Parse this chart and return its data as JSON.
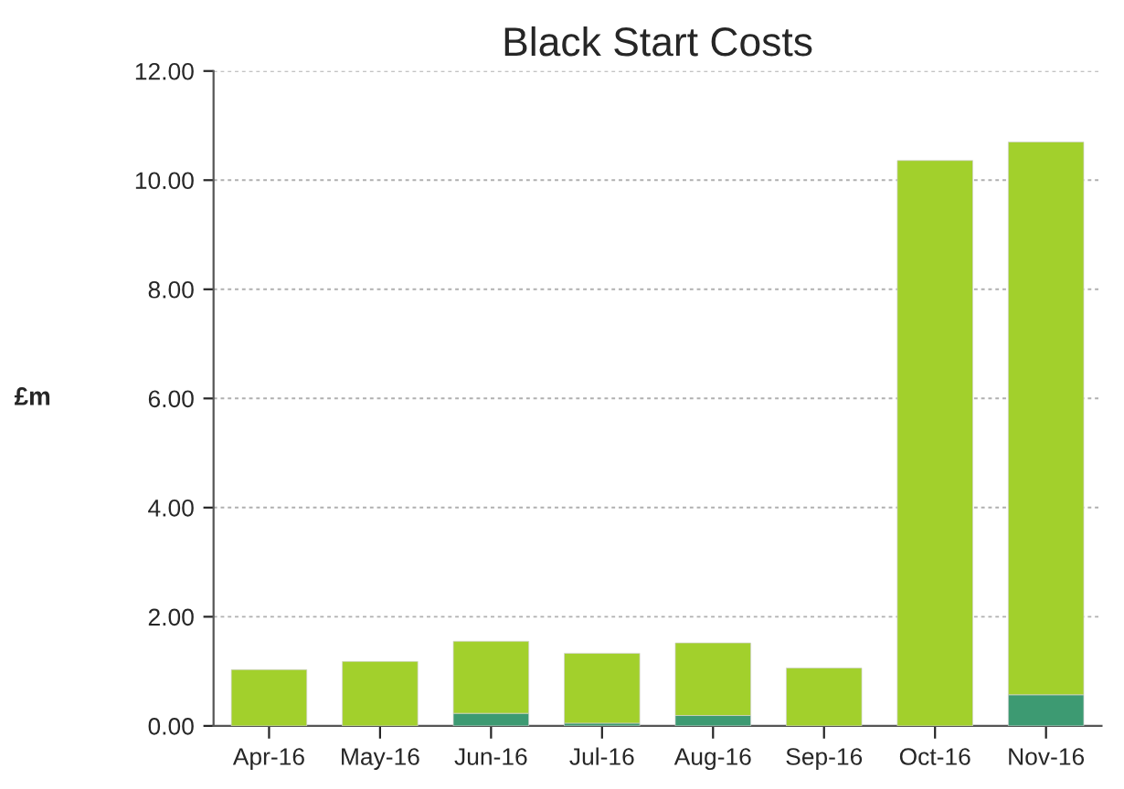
{
  "chart_data": {
    "type": "bar",
    "title": "Black Start Costs",
    "ylabel": "£m",
    "stacked": true,
    "categories": [
      "Apr-16",
      "May-16",
      "Jun-16",
      "Jul-16",
      "Aug-16",
      "Sep-16",
      "Oct-16",
      "Nov-16"
    ],
    "series": [
      {
        "color": "#3d9a72",
        "values": [
          0,
          0,
          0.23,
          0.05,
          0.19,
          0,
          0,
          0.57
        ]
      },
      {
        "color": "#a2d02c",
        "values": [
          1.03,
          1.18,
          1.32,
          1.28,
          1.33,
          1.06,
          10.36,
          10.13
        ]
      }
    ],
    "ylim": [
      0,
      12
    ],
    "yticks": [
      {
        "value": 0,
        "label": "0.00"
      },
      {
        "value": 2,
        "label": "2.00"
      },
      {
        "value": 4,
        "label": "4.00"
      },
      {
        "value": 6,
        "label": "6.00"
      },
      {
        "value": 8,
        "label": "8.00"
      },
      {
        "value": 10,
        "label": "10.00"
      },
      {
        "value": 12,
        "label": "12.00"
      }
    ],
    "grid": "y"
  }
}
